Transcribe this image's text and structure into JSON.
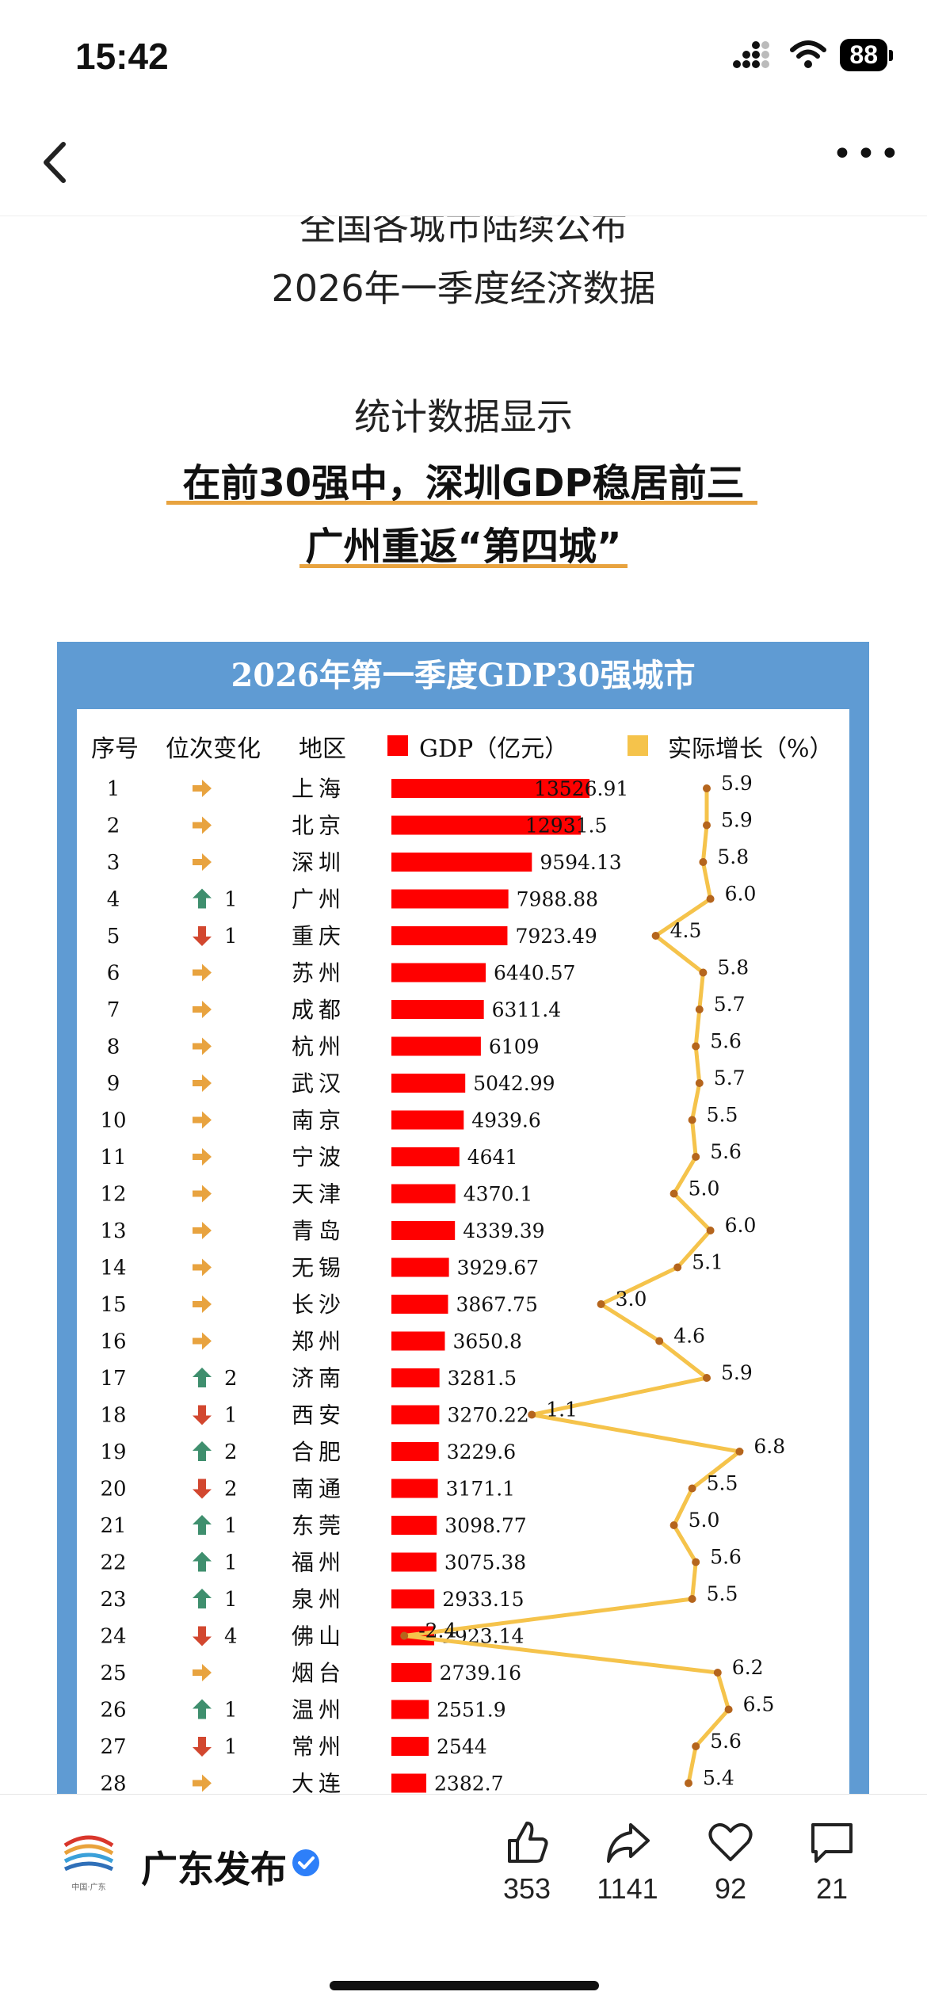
{
  "status_bar": {
    "time": "15:42",
    "battery": "88"
  },
  "article": {
    "line_cut": "全国各城市陆续公布",
    "line1": "2026年一季度经济数据",
    "line2": "统计数据显示",
    "highlight1": "在前30强中，深圳GDP稳居前三",
    "highlight2": "广州重返“第四城”"
  },
  "table": {
    "title": "2026年第一季度GDP30强城市",
    "headers": {
      "rank": "序号",
      "change": "位次变化",
      "region": "地区",
      "gdp": "GDP（亿元）",
      "growth": "实际增长（%）"
    },
    "colors": {
      "frame": "#5f9bd3",
      "bar": "#ff0000",
      "growth_line": "#f5c34b",
      "growth_point": "#b5651d",
      "up": "#3f8f6e",
      "down": "#d2472f",
      "same": "#e8a33f"
    },
    "rows": [
      {
        "rank": "1",
        "change": "same",
        "delta": "",
        "region": "上海",
        "gdp": "13526.91",
        "growth": "5.9"
      },
      {
        "rank": "2",
        "change": "same",
        "delta": "",
        "region": "北京",
        "gdp": "12931.5",
        "growth": "5.9"
      },
      {
        "rank": "3",
        "change": "same",
        "delta": "",
        "region": "深圳",
        "gdp": "9594.13",
        "growth": "5.8"
      },
      {
        "rank": "4",
        "change": "up",
        "delta": "1",
        "region": "广州",
        "gdp": "7988.88",
        "growth": "6.0"
      },
      {
        "rank": "5",
        "change": "down",
        "delta": "1",
        "region": "重庆",
        "gdp": "7923.49",
        "growth": "4.5"
      },
      {
        "rank": "6",
        "change": "same",
        "delta": "",
        "region": "苏州",
        "gdp": "6440.57",
        "growth": "5.8"
      },
      {
        "rank": "7",
        "change": "same",
        "delta": "",
        "region": "成都",
        "gdp": "6311.4",
        "growth": "5.7"
      },
      {
        "rank": "8",
        "change": "same",
        "delta": "",
        "region": "杭州",
        "gdp": "6109",
        "growth": "5.6"
      },
      {
        "rank": "9",
        "change": "same",
        "delta": "",
        "region": "武汉",
        "gdp": "5042.99",
        "growth": "5.7"
      },
      {
        "rank": "10",
        "change": "same",
        "delta": "",
        "region": "南京",
        "gdp": "4939.6",
        "growth": "5.5"
      },
      {
        "rank": "11",
        "change": "same",
        "delta": "",
        "region": "宁波",
        "gdp": "4641",
        "growth": "5.6"
      },
      {
        "rank": "12",
        "change": "same",
        "delta": "",
        "region": "天津",
        "gdp": "4370.1",
        "growth": "5.0"
      },
      {
        "rank": "13",
        "change": "same",
        "delta": "",
        "region": "青岛",
        "gdp": "4339.39",
        "growth": "6.0"
      },
      {
        "rank": "14",
        "change": "same",
        "delta": "",
        "region": "无锡",
        "gdp": "3929.67",
        "growth": "5.1"
      },
      {
        "rank": "15",
        "change": "same",
        "delta": "",
        "region": "长沙",
        "gdp": "3867.75",
        "growth": "3.0"
      },
      {
        "rank": "16",
        "change": "same",
        "delta": "",
        "region": "郑州",
        "gdp": "3650.8",
        "growth": "4.6"
      },
      {
        "rank": "17",
        "change": "up",
        "delta": "2",
        "region": "济南",
        "gdp": "3281.5",
        "growth": "5.9"
      },
      {
        "rank": "18",
        "change": "down",
        "delta": "1",
        "region": "西安",
        "gdp": "3270.22",
        "growth": "1.1"
      },
      {
        "rank": "19",
        "change": "up",
        "delta": "2",
        "region": "合肥",
        "gdp": "3229.6",
        "growth": "6.8"
      },
      {
        "rank": "20",
        "change": "down",
        "delta": "2",
        "region": "南通",
        "gdp": "3171.1",
        "growth": "5.5"
      },
      {
        "rank": "21",
        "change": "up",
        "delta": "1",
        "region": "东莞",
        "gdp": "3098.77",
        "growth": "5.0"
      },
      {
        "rank": "22",
        "change": "up",
        "delta": "1",
        "region": "福州",
        "gdp": "3075.38",
        "growth": "5.6"
      },
      {
        "rank": "23",
        "change": "up",
        "delta": "1",
        "region": "泉州",
        "gdp": "2933.15",
        "growth": "5.5"
      },
      {
        "rank": "24",
        "change": "down",
        "delta": "4",
        "region": "佛山",
        "gdp": "2923.14",
        "growth": "-2.4"
      },
      {
        "rank": "25",
        "change": "same",
        "delta": "",
        "region": "烟台",
        "gdp": "2739.16",
        "growth": "6.2"
      },
      {
        "rank": "26",
        "change": "up",
        "delta": "1",
        "region": "温州",
        "gdp": "2551.9",
        "growth": "6.5"
      },
      {
        "rank": "27",
        "change": "down",
        "delta": "1",
        "region": "常州",
        "gdp": "2544",
        "growth": "5.6"
      },
      {
        "rank": "28",
        "change": "same",
        "delta": "",
        "region": "大连",
        "gdp": "2382.7",
        "growth": "5.4"
      }
    ]
  },
  "bottom_bar": {
    "account_name": "广东发布",
    "logo_caption": "中国·广东",
    "likes": "353",
    "shares": "1141",
    "favorites": "92",
    "comments": "21"
  }
}
